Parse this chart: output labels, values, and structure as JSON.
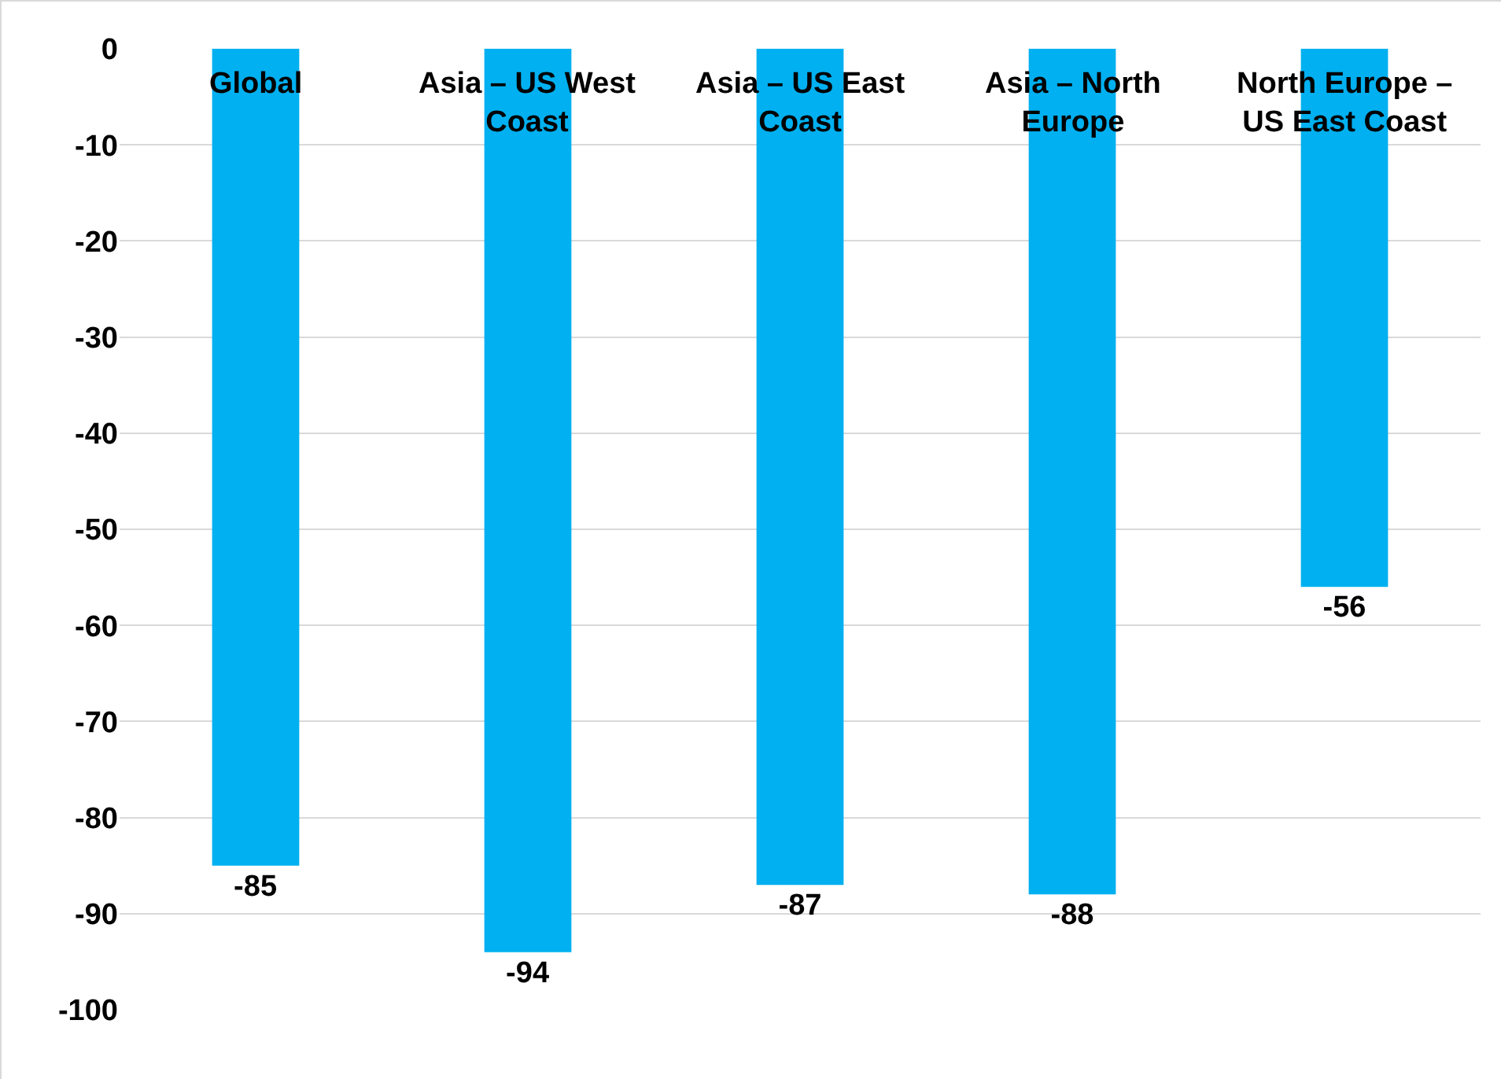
{
  "chart_data": {
    "type": "bar",
    "categories": [
      "Global",
      "Asia – US West Coast",
      "Asia – US East Coast",
      "Asia – North Europe",
      "North Europe – US East Coast"
    ],
    "values": [
      -85,
      -94,
      -87,
      -88,
      -56
    ],
    "color": "#00b0f0",
    "data_labels": true,
    "grid": "y",
    "ylim": [
      -100,
      0
    ],
    "yticks": [
      0,
      -10,
      -20,
      -30,
      -40,
      -50,
      -60,
      -70,
      -80,
      -90,
      -100
    ]
  }
}
